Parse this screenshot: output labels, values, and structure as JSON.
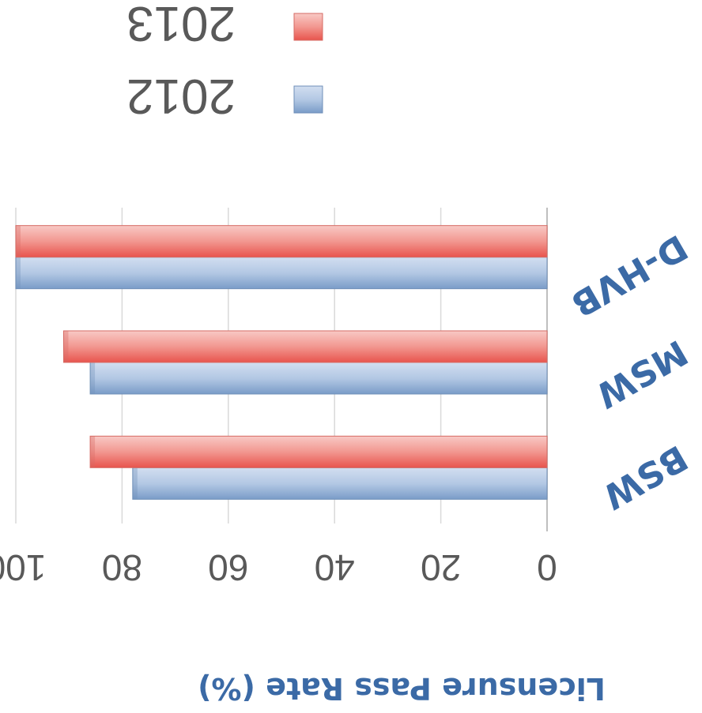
{
  "chart_data": {
    "type": "bar",
    "orientation": "horizontal",
    "categories": [
      "BSW",
      "MSW",
      "D-HVB"
    ],
    "series": [
      {
        "name": "2012",
        "values": [
          78,
          86,
          100
        ],
        "color": "#9db8d8"
      },
      {
        "name": "2013",
        "values": [
          86,
          91,
          100
        ],
        "color": "#ef8f89"
      }
    ],
    "xlabel": "Licensure Pass Rate (%)",
    "ylabel": "",
    "xlim": [
      0,
      100
    ],
    "ticks": [
      "0",
      "20",
      "40",
      "60",
      "80",
      "100"
    ],
    "grid": true,
    "legend": "top",
    "rotation": "upside-down"
  }
}
